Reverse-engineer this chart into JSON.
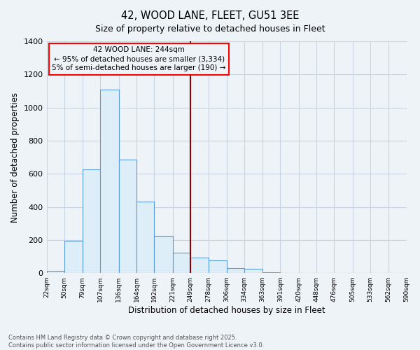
{
  "title": "42, WOOD LANE, FLEET, GU51 3EE",
  "subtitle": "Size of property relative to detached houses in Fleet",
  "xlabel": "Distribution of detached houses by size in Fleet",
  "ylabel": "Number of detached properties",
  "bar_edges": [
    22,
    50,
    79,
    107,
    136,
    164,
    192,
    221,
    249,
    278,
    306,
    334,
    363,
    391,
    420,
    448,
    476,
    505,
    533,
    562,
    590
  ],
  "bar_heights": [
    15,
    195,
    625,
    1110,
    685,
    430,
    225,
    125,
    95,
    75,
    30,
    25,
    5,
    2,
    1,
    0,
    0,
    0,
    0,
    0
  ],
  "bar_color": "#ddeef8",
  "bar_edgecolor": "#5b9bd5",
  "bar_linewidth": 0.8,
  "vline_x": 249,
  "vline_color": "#8b0000",
  "vline_linewidth": 1.5,
  "ylim": [
    0,
    1400
  ],
  "annotation_title": "42 WOOD LANE: 244sqm",
  "annotation_line1": "← 95% of detached houses are smaller (3,334)",
  "annotation_line2": "5% of semi-detached houses are larger (190) →",
  "footnote1": "Contains HM Land Registry data © Crown copyright and database right 2025.",
  "footnote2": "Contains public sector information licensed under the Open Government Licence v3.0.",
  "bg_color": "#eef3f8",
  "grid_color": "#c8d4e0",
  "tick_labels": [
    "22sqm",
    "50sqm",
    "79sqm",
    "107sqm",
    "136sqm",
    "164sqm",
    "192sqm",
    "221sqm",
    "249sqm",
    "278sqm",
    "306sqm",
    "334sqm",
    "363sqm",
    "391sqm",
    "420sqm",
    "448sqm",
    "476sqm",
    "505sqm",
    "533sqm",
    "562sqm",
    "590sqm"
  ],
  "yticks": [
    0,
    200,
    400,
    600,
    800,
    1000,
    1200,
    1400
  ]
}
